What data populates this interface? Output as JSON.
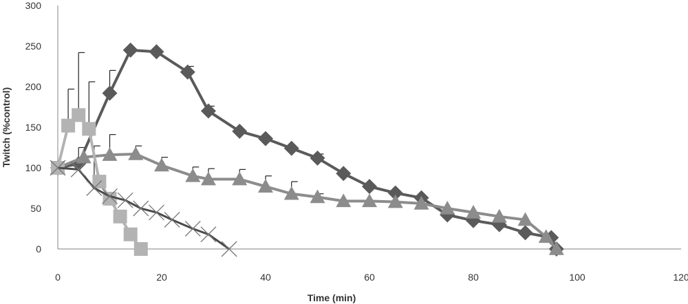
{
  "chart_data": {
    "type": "line",
    "xlabel": "Time (min)",
    "ylabel": "Twitch (%control)",
    "xlim": [
      0,
      120
    ],
    "ylim": [
      0,
      300
    ],
    "xticks": [
      0,
      20,
      40,
      60,
      80,
      100,
      120
    ],
    "yticks": [
      0,
      50,
      100,
      150,
      200,
      250,
      300
    ],
    "grid": false,
    "legend": "none",
    "series": [
      {
        "marker": "diamond",
        "color": "#5a5a5a",
        "x": [
          0,
          4,
          10,
          14,
          19,
          25,
          29,
          35,
          40,
          45,
          50,
          55,
          60,
          65,
          70,
          75,
          80,
          85,
          90,
          95,
          96
        ],
        "y": [
          100,
          105,
          192,
          245,
          243,
          218,
          170,
          145,
          136,
          124,
          112,
          93,
          77,
          69,
          63,
          42,
          35,
          30,
          20,
          14,
          0
        ],
        "error_up": [
          0,
          0,
          28,
          0,
          0,
          7,
          6,
          0,
          0,
          0,
          5,
          0,
          0,
          0,
          0,
          0,
          0,
          0,
          0,
          0,
          0
        ]
      },
      {
        "marker": "triangle",
        "color": "#8c8c8c",
        "x": [
          0,
          5,
          10,
          15,
          20,
          26,
          29,
          35,
          40,
          45,
          50,
          55,
          60,
          65,
          70,
          75,
          80,
          85,
          90,
          94,
          96
        ],
        "y": [
          100,
          113,
          116,
          117,
          103,
          90,
          86,
          86,
          77,
          68,
          64,
          59,
          59,
          58,
          56,
          50,
          45,
          40,
          36,
          15,
          0
        ],
        "error_up": [
          0,
          0,
          25,
          10,
          10,
          11,
          13,
          12,
          13,
          15,
          4,
          0,
          0,
          0,
          0,
          0,
          0,
          0,
          0,
          0,
          0
        ]
      },
      {
        "marker": "square",
        "color": "#b3b3b3",
        "x": [
          0,
          2,
          4,
          6,
          8,
          10,
          12,
          14,
          16
        ],
        "y": [
          100,
          152,
          165,
          148,
          83,
          62,
          40,
          18,
          0
        ],
        "error_up": [
          0,
          45,
          77,
          58,
          0,
          0,
          0,
          0,
          0
        ]
      },
      {
        "marker": "cross",
        "color": "#4a4a4a",
        "x": [
          0,
          4,
          7,
          10,
          13,
          16,
          19,
          22,
          26,
          29,
          33
        ],
        "y": [
          100,
          98,
          75,
          65,
          60,
          50,
          45,
          36,
          25,
          18,
          0
        ],
        "error_up": [
          0,
          27,
          52,
          0,
          0,
          0,
          0,
          0,
          0,
          0,
          0
        ]
      }
    ]
  }
}
